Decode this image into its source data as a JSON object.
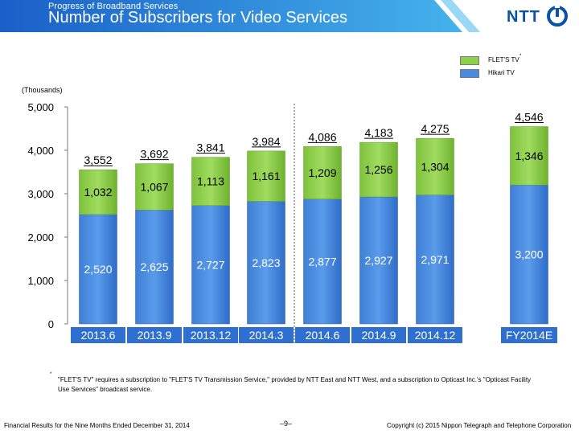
{
  "header": {
    "subtitle": "Progress of Broadband Services",
    "title": "Number of Subscribers for Video Services",
    "logo_text": "NTT"
  },
  "units_label": "(Thousands)",
  "legend": {
    "items": [
      {
        "label": "FLET'S TV",
        "sup": "*",
        "color": "#8ed04a"
      },
      {
        "label": "Hikari TV",
        "sup": "",
        "color": "#4a8de0"
      }
    ]
  },
  "chart_data": {
    "type": "bar",
    "stacked": true,
    "categories": [
      "2013.6",
      "2013.9",
      "2013.12",
      "2014.3",
      "2014.6",
      "2014.9",
      "2014.12",
      "FY2014E"
    ],
    "series": [
      {
        "name": "Hikari TV",
        "values": [
          2520,
          2625,
          2727,
          2823,
          2877,
          2927,
          2971,
          3200
        ],
        "labels": [
          "2,520",
          "2,625",
          "2,727",
          "2,823",
          "2,877",
          "2,927",
          "2,971",
          "3,200"
        ],
        "color": "#4a8de0"
      },
      {
        "name": "FLET'S TV",
        "values": [
          1032,
          1067,
          1113,
          1161,
          1209,
          1256,
          1304,
          1346
        ],
        "labels": [
          "1,032",
          "1,067",
          "1,113",
          "1,161",
          "1,209",
          "1,256",
          "1,304",
          "1,346"
        ],
        "color": "#8ed04a"
      }
    ],
    "totals": [
      "3,552",
      "3,692",
      "3,841",
      "3,984",
      "4,086",
      "4,183",
      "4,275",
      "4,546"
    ],
    "y_ticks": [
      0,
      1000,
      2000,
      3000,
      4000,
      5000
    ],
    "y_tick_labels": [
      "0",
      "1,000",
      "2,000",
      "3,000",
      "4,000",
      "5,000"
    ],
    "ylim": [
      0,
      5000
    ],
    "divider_after_category": 3,
    "colors": {
      "category_box": "#2f6fd0"
    }
  },
  "footnote": {
    "mark": "*",
    "text": "\"FLET'S TV\" requires a subscription to \"FLET'S TV Transmission Service,\" provided by NTT East and NTT West, and a subscription to Opticast Inc.'s \"Opticast Facility Use Services\" broadcast service."
  },
  "footer": {
    "left": "Financial Results for the Nine Months Ended December 31, 2014",
    "page": "–9–",
    "right": "Copyright (c) 2015  Nippon Telegraph and Telephone Corporation"
  }
}
